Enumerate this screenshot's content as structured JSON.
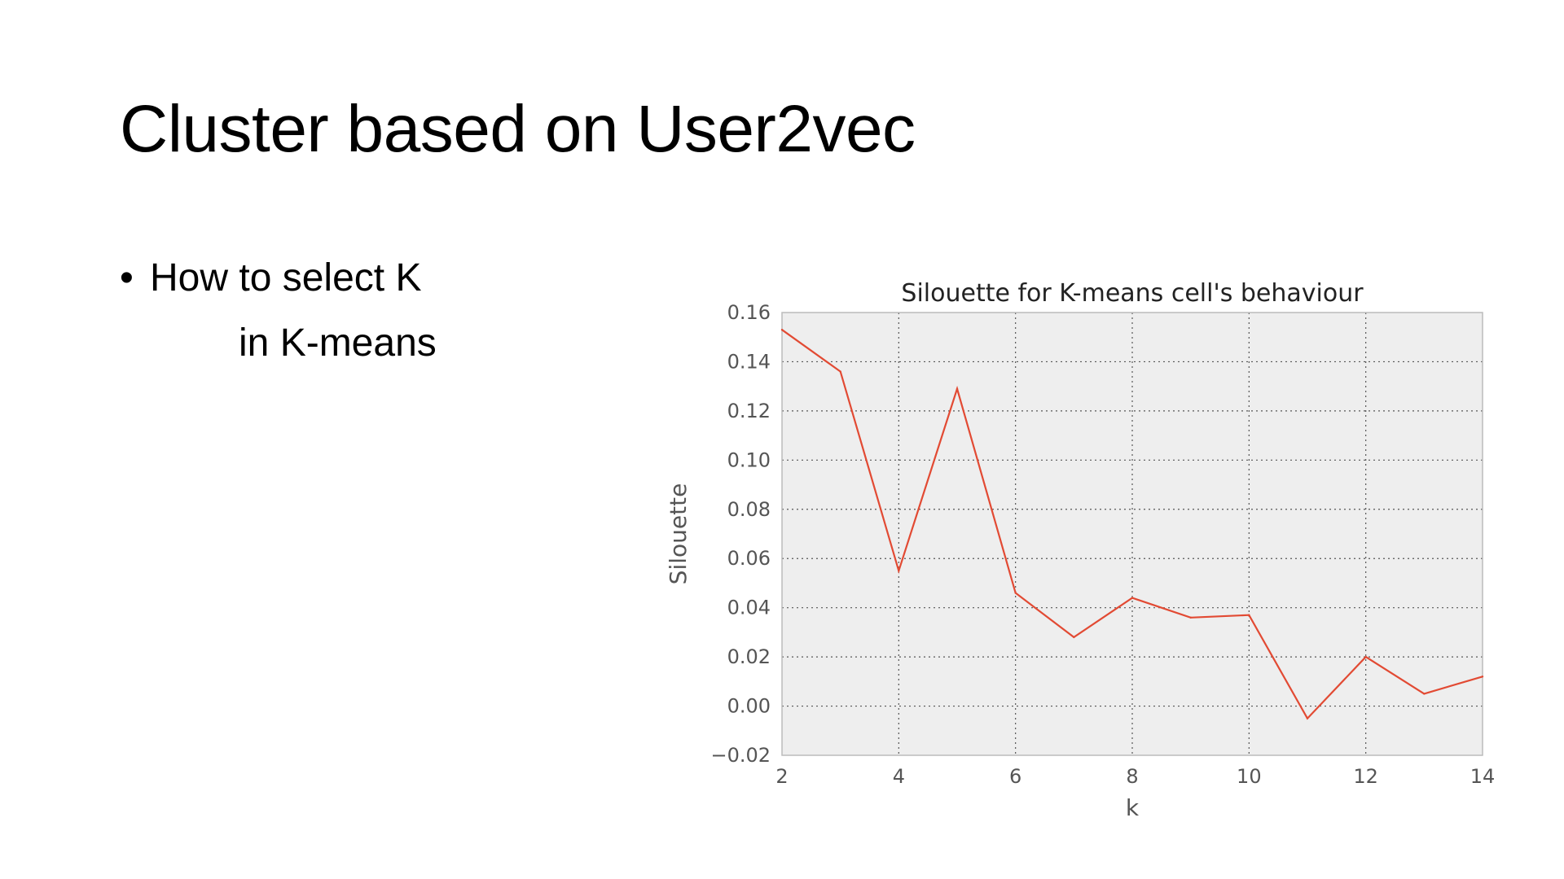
{
  "slide": {
    "title": "Cluster based on User2vec",
    "bullet": {
      "mark": "•",
      "line1": "How to select K",
      "line2": "in K-means"
    }
  },
  "colors": {
    "line": "#e24a33",
    "plot_background": "#eeeeee",
    "grid": "#555555",
    "tick_text": "#555555"
  },
  "chart_data": {
    "type": "line",
    "title": "Silouette for K-means cell's behaviour",
    "xlabel": "k",
    "ylabel": "Silouette",
    "xlim": [
      2,
      14
    ],
    "ylim": [
      -0.02,
      0.16
    ],
    "xticks": [
      2,
      4,
      6,
      8,
      10,
      12,
      14
    ],
    "xtick_labels": [
      "2",
      "4",
      "6",
      "8",
      "10",
      "12",
      "14"
    ],
    "yticks": [
      -0.02,
      0.0,
      0.02,
      0.04,
      0.06,
      0.08,
      0.1,
      0.12,
      0.14,
      0.16
    ],
    "ytick_labels": [
      "−0.02",
      "0.00",
      "0.02",
      "0.04",
      "0.06",
      "0.08",
      "0.10",
      "0.12",
      "0.14",
      "0.16"
    ],
    "grid": true,
    "series": [
      {
        "x": [
          2,
          3,
          4,
          5,
          6,
          7,
          8,
          9,
          10,
          11,
          12,
          13,
          14
        ],
        "values": [
          0.153,
          0.136,
          0.055,
          0.129,
          0.046,
          0.028,
          0.044,
          0.036,
          0.037,
          -0.005,
          0.02,
          0.005,
          0.012
        ]
      }
    ]
  }
}
